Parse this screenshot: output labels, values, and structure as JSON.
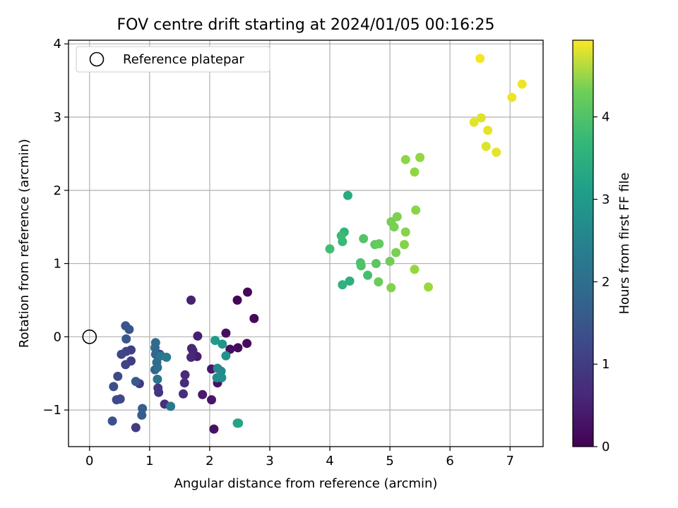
{
  "chart_data": {
    "type": "scatter",
    "title": "FOV centre drift starting at 2024/01/05 00:16:25",
    "xlabel": "Angular distance from reference (arcmin)",
    "ylabel": "Rotation from reference (arcmin)",
    "xlim": [
      -0.35,
      7.55
    ],
    "ylim": [
      -1.5,
      4.05
    ],
    "xticks": [
      0,
      1,
      2,
      3,
      4,
      5,
      6,
      7
    ],
    "yticks": [
      -1,
      0,
      1,
      2,
      3,
      4
    ],
    "xtick_labels": [
      "0",
      "1",
      "2",
      "3",
      "4",
      "5",
      "6",
      "7"
    ],
    "ytick_labels": [
      "−1",
      "0",
      "1",
      "2",
      "3",
      "4"
    ],
    "grid": true,
    "legend": {
      "position": "top-left",
      "label": "Reference platepar"
    },
    "reference_point": {
      "x": 0,
      "y": 0
    },
    "colorbar": {
      "label": "Hours from first FF file",
      "colormap": "viridis",
      "range": [
        0,
        4.93
      ],
      "ticks": [
        0,
        1,
        2,
        3,
        4
      ],
      "tick_labels": [
        "0",
        "1",
        "2",
        "3",
        "4"
      ]
    },
    "series": [
      {
        "points": [
          {
            "x": 2.46,
            "y": 0.5,
            "c": 0.05
          },
          {
            "x": 2.63,
            "y": 0.61,
            "c": 0.08
          },
          {
            "x": 2.74,
            "y": 0.25,
            "c": 0.1
          },
          {
            "x": 2.62,
            "y": -0.09,
            "c": 0.12
          },
          {
            "x": 2.47,
            "y": -0.15,
            "c": 0.15
          },
          {
            "x": 2.34,
            "y": -0.17,
            "c": 0.18
          },
          {
            "x": 2.27,
            "y": 0.05,
            "c": 0.2
          },
          {
            "x": 2.07,
            "y": -1.26,
            "c": 0.22
          },
          {
            "x": 2.13,
            "y": -0.63,
            "c": 0.25
          },
          {
            "x": 2.03,
            "y": -0.86,
            "c": 0.3
          },
          {
            "x": 2.03,
            "y": -0.44,
            "c": 0.32
          },
          {
            "x": 1.88,
            "y": -0.79,
            "c": 0.35
          },
          {
            "x": 1.79,
            "y": -0.27,
            "c": 0.4
          },
          {
            "x": 1.8,
            "y": 0.01,
            "c": 0.42
          },
          {
            "x": 1.69,
            "y": 0.5,
            "c": 0.45
          },
          {
            "x": 1.7,
            "y": -0.16,
            "c": 0.5
          },
          {
            "x": 1.72,
            "y": -0.19,
            "c": 0.52
          },
          {
            "x": 1.69,
            "y": -0.28,
            "c": 0.55
          },
          {
            "x": 1.59,
            "y": -0.52,
            "c": 0.6
          },
          {
            "x": 1.58,
            "y": -0.63,
            "c": 0.62
          },
          {
            "x": 1.56,
            "y": -0.78,
            "c": 0.65
          },
          {
            "x": 1.25,
            "y": -0.92,
            "c": 0.7
          },
          {
            "x": 1.17,
            "y": -0.24,
            "c": 0.72
          },
          {
            "x": 1.15,
            "y": -0.76,
            "c": 0.75
          },
          {
            "x": 1.14,
            "y": -0.7,
            "c": 0.8
          },
          {
            "x": 0.83,
            "y": -0.64,
            "c": 0.85
          },
          {
            "x": 0.77,
            "y": -1.24,
            "c": 0.88
          },
          {
            "x": 0.69,
            "y": -0.33,
            "c": 0.9
          },
          {
            "x": 0.69,
            "y": -0.18,
            "c": 0.95
          },
          {
            "x": 0.61,
            "y": -0.2,
            "c": 1.0
          },
          {
            "x": 0.6,
            "y": -0.38,
            "c": 1.02
          },
          {
            "x": 0.53,
            "y": -0.24,
            "c": 1.05
          },
          {
            "x": 0.51,
            "y": -0.85,
            "c": 1.1
          },
          {
            "x": 0.45,
            "y": -0.86,
            "c": 1.12
          },
          {
            "x": 0.47,
            "y": -0.54,
            "c": 1.15
          },
          {
            "x": 0.4,
            "y": -0.68,
            "c": 1.2
          },
          {
            "x": 0.38,
            "y": -1.15,
            "c": 1.25
          },
          {
            "x": 0.6,
            "y": 0.15,
            "c": 1.3
          },
          {
            "x": 0.66,
            "y": 0.1,
            "c": 1.32
          },
          {
            "x": 0.61,
            "y": -0.03,
            "c": 1.35
          },
          {
            "x": 0.77,
            "y": -0.61,
            "c": 1.4
          },
          {
            "x": 0.87,
            "y": -1.07,
            "c": 1.45
          },
          {
            "x": 0.88,
            "y": -0.98,
            "c": 1.5
          },
          {
            "x": 1.09,
            "y": -0.45,
            "c": 1.55
          },
          {
            "x": 1.1,
            "y": -0.24,
            "c": 1.6
          },
          {
            "x": 1.09,
            "y": -0.15,
            "c": 1.65
          },
          {
            "x": 1.1,
            "y": -0.08,
            "c": 1.7
          },
          {
            "x": 1.12,
            "y": -0.35,
            "c": 1.75
          },
          {
            "x": 1.13,
            "y": -0.42,
            "c": 1.8
          },
          {
            "x": 1.13,
            "y": -0.58,
            "c": 1.85
          },
          {
            "x": 1.19,
            "y": -0.26,
            "c": 1.9
          },
          {
            "x": 1.35,
            "y": -0.95,
            "c": 1.95
          },
          {
            "x": 1.28,
            "y": -0.28,
            "c": 2.0
          },
          {
            "x": 2.13,
            "y": -0.43,
            "c": 2.3
          },
          {
            "x": 2.19,
            "y": -0.47,
            "c": 2.35
          },
          {
            "x": 2.12,
            "y": -0.56,
            "c": 2.4
          },
          {
            "x": 2.2,
            "y": -0.56,
            "c": 2.45
          },
          {
            "x": 2.27,
            "y": -0.26,
            "c": 2.5
          },
          {
            "x": 2.21,
            "y": -0.1,
            "c": 2.6
          },
          {
            "x": 2.09,
            "y": -0.05,
            "c": 2.7
          },
          {
            "x": 2.46,
            "y": -1.18,
            "c": 2.85
          },
          {
            "x": 2.48,
            "y": -1.18,
            "c": 2.88
          },
          {
            "x": 4.3,
            "y": 1.93,
            "c": 3.0
          },
          {
            "x": 4.33,
            "y": 0.76,
            "c": 3.1
          },
          {
            "x": 4.21,
            "y": 0.71,
            "c": 3.15
          },
          {
            "x": 4.24,
            "y": 1.43,
            "c": 3.2
          },
          {
            "x": 4.21,
            "y": 1.3,
            "c": 3.3
          },
          {
            "x": 4.19,
            "y": 1.38,
            "c": 3.35
          },
          {
            "x": 4.0,
            "y": 1.2,
            "c": 3.4
          },
          {
            "x": 4.63,
            "y": 0.84,
            "c": 3.45
          },
          {
            "x": 4.51,
            "y": 1.01,
            "c": 3.5
          },
          {
            "x": 4.52,
            "y": 0.97,
            "c": 3.55
          },
          {
            "x": 4.56,
            "y": 1.34,
            "c": 3.6
          },
          {
            "x": 4.77,
            "y": 1.0,
            "c": 3.65
          },
          {
            "x": 4.75,
            "y": 1.26,
            "c": 3.7
          },
          {
            "x": 4.82,
            "y": 1.27,
            "c": 3.75
          },
          {
            "x": 4.81,
            "y": 0.75,
            "c": 3.8
          },
          {
            "x": 5.0,
            "y": 1.03,
            "c": 3.85
          },
          {
            "x": 5.02,
            "y": 1.57,
            "c": 3.88
          },
          {
            "x": 5.07,
            "y": 1.5,
            "c": 3.9
          },
          {
            "x": 5.1,
            "y": 1.15,
            "c": 3.92
          },
          {
            "x": 5.12,
            "y": 1.64,
            "c": 3.95
          },
          {
            "x": 5.02,
            "y": 0.67,
            "c": 3.98
          },
          {
            "x": 5.24,
            "y": 1.26,
            "c": 4.0
          },
          {
            "x": 5.26,
            "y": 1.43,
            "c": 4.02
          },
          {
            "x": 5.43,
            "y": 1.73,
            "c": 4.05
          },
          {
            "x": 5.26,
            "y": 2.42,
            "c": 4.08
          },
          {
            "x": 5.41,
            "y": 2.25,
            "c": 4.1
          },
          {
            "x": 5.5,
            "y": 2.45,
            "c": 4.12
          },
          {
            "x": 5.41,
            "y": 0.92,
            "c": 4.15
          },
          {
            "x": 5.64,
            "y": 0.68,
            "c": 4.18
          },
          {
            "x": 6.5,
            "y": 3.8,
            "c": 4.85
          },
          {
            "x": 6.52,
            "y": 2.99,
            "c": 4.7
          },
          {
            "x": 6.4,
            "y": 2.93,
            "c": 4.72
          },
          {
            "x": 6.63,
            "y": 2.82,
            "c": 4.75
          },
          {
            "x": 6.6,
            "y": 2.6,
            "c": 4.7
          },
          {
            "x": 6.77,
            "y": 2.52,
            "c": 4.75
          },
          {
            "x": 7.03,
            "y": 3.27,
            "c": 4.8
          },
          {
            "x": 7.2,
            "y": 3.45,
            "c": 4.82
          }
        ]
      }
    ]
  }
}
